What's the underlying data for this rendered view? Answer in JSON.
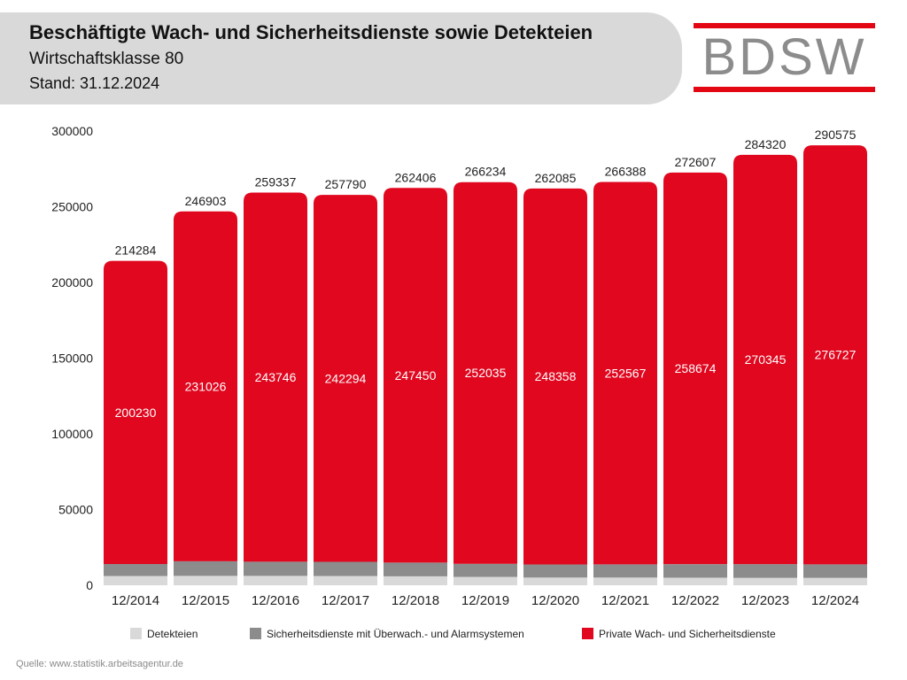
{
  "header": {
    "title": "Beschäftigte Wach- und Sicherheitsdienste sowie Detekteien",
    "subtitle": "Wirtschaftsklasse 80",
    "stand": "Stand: 31.12.2024"
  },
  "logo": {
    "text": "BDSW",
    "accent": "#e30613",
    "text_color": "#8c8c8c"
  },
  "colors": {
    "red": "#e0071f",
    "gray": "#8c8c8c",
    "lightgray": "#d9d9d9"
  },
  "source": "Quelle: www.statistik.arbeitsagentur.de",
  "chart_data": {
    "type": "bar",
    "stacked": true,
    "categories": [
      "12/2014",
      "12/2015",
      "12/2016",
      "12/2017",
      "12/2018",
      "12/2019",
      "12/2020",
      "12/2021",
      "12/2022",
      "12/2023",
      "12/2024"
    ],
    "series": [
      {
        "name": "Detekteien",
        "color": "#d9d9d9",
        "values": [
          6100,
          6200,
          6200,
          6100,
          5900,
          5500,
          5100,
          5100,
          5000,
          4900,
          4900
        ]
      },
      {
        "name": "Sicherheitsdienste mit Überwach.- und Alarmsystemen",
        "color": "#8c8c8c",
        "values": [
          7954,
          9677,
          9391,
          9396,
          9056,
          8699,
          8627,
          8721,
          8933,
          9075,
          8948
        ]
      },
      {
        "name": "Private Wach- und Sicherheitsdienste",
        "color": "#e0071f",
        "values": [
          200230,
          231026,
          243746,
          242294,
          247450,
          252035,
          248358,
          252567,
          258674,
          270345,
          276727
        ]
      }
    ],
    "totals": [
      214284,
      246903,
      259337,
      257790,
      262406,
      266234,
      262085,
      266388,
      272607,
      284320,
      290575
    ],
    "ylim": [
      0,
      300000
    ],
    "yticks": [
      0,
      50000,
      100000,
      150000,
      200000,
      250000,
      300000
    ],
    "grid": false,
    "legend_position": "bottom"
  }
}
